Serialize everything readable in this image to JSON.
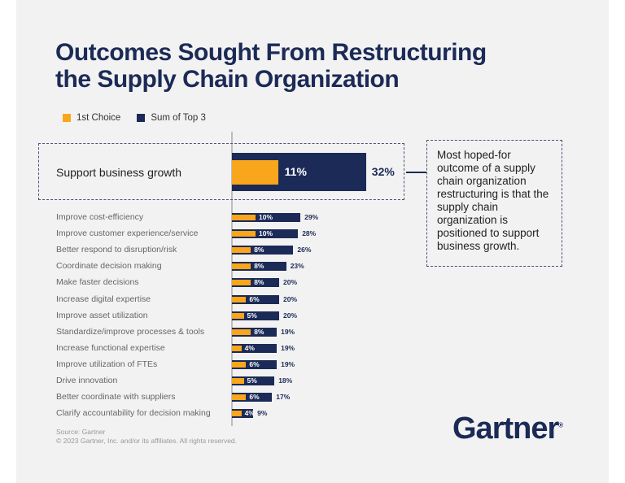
{
  "title_line1": "Outcomes Sought From Restructuring",
  "title_line2": "the Supply Chain Organization",
  "colors": {
    "first_choice": "#f9a61c",
    "sum_top3": "#1b2a56",
    "background": "#f2f2f2"
  },
  "chart_data": {
    "type": "bar",
    "orientation": "horizontal",
    "legend": [
      {
        "name": "1st Choice"
      },
      {
        "name": "Sum of Top 3"
      }
    ],
    "legend_placement": "top-left",
    "unit": "%",
    "highlight": {
      "category": "Support business growth",
      "first_choice": 11,
      "sum_top3": 32
    },
    "categories": [
      "Improve cost-efficiency",
      "Improve customer experience/service",
      "Better respond to disruption/risk",
      "Coordinate decision making",
      "Make faster decisions",
      "Increase digital expertise",
      "Improve asset utilization",
      "Standardize/improve processes & tools",
      "Increase functional expertise",
      "Improve utilization of FTEs",
      "Drive innovation",
      "Better coordinate with suppliers",
      "Clarify accountability for decision making"
    ],
    "series": [
      {
        "name": "1st Choice",
        "values": [
          10,
          10,
          8,
          8,
          8,
          6,
          5,
          8,
          4,
          6,
          5,
          6,
          4
        ]
      },
      {
        "name": "Sum of Top 3",
        "values": [
          29,
          28,
          26,
          23,
          20,
          20,
          20,
          19,
          19,
          19,
          18,
          17,
          9
        ]
      }
    ],
    "grid": false
  },
  "annotation": "Most hoped-for outcome of a supply chain organization restructuring is that the supply chain organization is positioned to support business growth.",
  "source": "Source: Gartner",
  "copyright": "© 2023 Gartner, Inc. and/or its affiliates. All rights reserved.",
  "logo": "Gartner"
}
